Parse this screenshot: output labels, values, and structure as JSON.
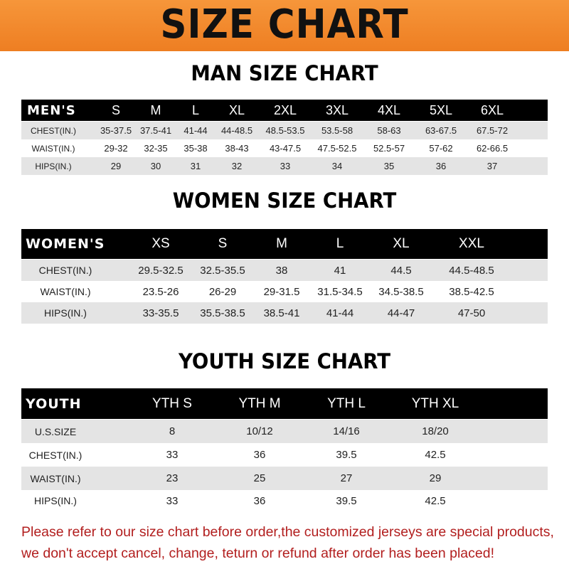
{
  "banner_title": "SIZE CHART",
  "men": {
    "title": "MAN SIZE CHART",
    "header": [
      "MEN'S",
      "S",
      "M",
      "L",
      "XL",
      "2XL",
      "3XL",
      "4XL",
      "5XL",
      "6XL"
    ],
    "rows": [
      [
        "CHEST(IN.)",
        "35-37.5",
        "37.5-41",
        "41-44",
        "44-48.5",
        "48.5-53.5",
        "53.5-58",
        "58-63",
        "63-67.5",
        "67.5-72"
      ],
      [
        "WAIST(IN.)",
        "29-32",
        "32-35",
        "35-38",
        "38-43",
        "43-47.5",
        "47.5-52.5",
        "52.5-57",
        "57-62",
        "62-66.5"
      ],
      [
        "HIPS(IN.)",
        "29",
        "30",
        "31",
        "32",
        "33",
        "34",
        "35",
        "36",
        "37"
      ]
    ]
  },
  "women": {
    "title": "WOMEN SIZE CHART",
    "header": [
      "WOMEN'S",
      "XS",
      "S",
      "M",
      "L",
      "XL",
      "XXL"
    ],
    "rows": [
      [
        "CHEST(IN.)",
        "29.5-32.5",
        "32.5-35.5",
        "38",
        "41",
        "44.5",
        "44.5-48.5"
      ],
      [
        "WAIST(IN.)",
        "23.5-26",
        "26-29",
        "29-31.5",
        "31.5-34.5",
        "34.5-38.5",
        "38.5-42.5"
      ],
      [
        "HIPS(IN.)",
        "33-35.5",
        "35.5-38.5",
        "38.5-41",
        "41-44",
        "44-47",
        "47-50"
      ]
    ]
  },
  "youth": {
    "title": "YOUTH SIZE CHART",
    "header": [
      "YOUTH",
      "YTH S",
      "YTH M",
      "YTH L",
      "YTH XL"
    ],
    "rows": [
      [
        "U.S.SIZE",
        "8",
        "10/12",
        "14/16",
        "18/20"
      ],
      [
        "CHEST(IN.)",
        "33",
        "36",
        "39.5",
        "42.5"
      ],
      [
        "WAIST(IN.)",
        "23",
        "25",
        "27",
        "29"
      ],
      [
        "HIPS(IN.)",
        "33",
        "36",
        "39.5",
        "42.5"
      ]
    ]
  },
  "notice": {
    "line1": "Please refer to our size chart before order,the customized jerseys are special products,",
    "line2": "we don't accept cancel, change, teturn or refund after order has been placed!"
  },
  "colors": {
    "banner": "#f08a2e",
    "header_row": "#000000",
    "stripe": "#e4e4e4",
    "notice": "#b21e1e"
  }
}
